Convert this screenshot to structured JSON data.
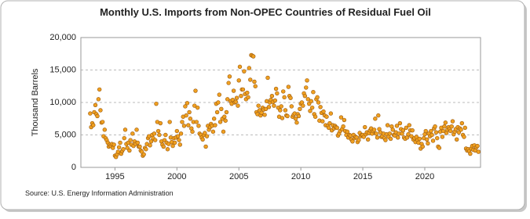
{
  "chart_data": {
    "type": "scatter",
    "title": "Monthly U.S. Imports from Non-OPEC Countries of Residual Fuel Oil",
    "y_label": "Thousand Barrels",
    "source": "Source: U.S. Energy Information Administration",
    "color": "#f0a020",
    "edge_color": "#9a5a10",
    "grid": true,
    "xlim": [
      1992.25,
      2024.5
    ],
    "xticks": [
      1995,
      2000,
      2005,
      2010,
      2015,
      2020
    ],
    "ylim": [
      0,
      20000
    ],
    "yticks": [
      0,
      {
        "value": 5000,
        "label": "5,000"
      },
      {
        "value": 10000,
        "label": "10,000"
      },
      {
        "value": 15000,
        "label": "15,000"
      },
      {
        "value": 20000,
        "label": "20,000"
      }
    ],
    "x": [
      1993,
      1993.08,
      1993.17,
      1993.25,
      1993.33,
      1993.42,
      1993.5,
      1993.58,
      1993.67,
      1993.75,
      1993.83,
      1993.92,
      1994,
      1994.08,
      1994.17,
      1994.25,
      1994.33,
      1994.42,
      1994.5,
      1994.58,
      1994.67,
      1994.75,
      1994.83,
      1994.92,
      1995,
      1995.08,
      1995.17,
      1995.25,
      1995.33,
      1995.42,
      1995.5,
      1995.58,
      1995.67,
      1995.75,
      1995.83,
      1995.92,
      1996,
      1996.08,
      1996.17,
      1996.25,
      1996.33,
      1996.42,
      1996.5,
      1996.58,
      1996.67,
      1996.75,
      1996.83,
      1996.92,
      1997,
      1997.08,
      1997.17,
      1997.25,
      1997.33,
      1997.42,
      1997.5,
      1997.58,
      1997.67,
      1997.75,
      1997.83,
      1997.92,
      1998,
      1998.08,
      1998.17,
      1998.25,
      1998.33,
      1998.42,
      1998.5,
      1998.58,
      1998.67,
      1998.75,
      1998.83,
      1998.92,
      1999,
      1999.08,
      1999.17,
      1999.25,
      1999.33,
      1999.42,
      1999.5,
      1999.58,
      1999.67,
      1999.75,
      1999.83,
      1999.92,
      2000,
      2000.08,
      2000.17,
      2000.25,
      2000.33,
      2000.42,
      2000.5,
      2000.58,
      2000.67,
      2000.75,
      2000.83,
      2000.92,
      2001,
      2001.08,
      2001.17,
      2001.25,
      2001.33,
      2001.42,
      2001.5,
      2001.58,
      2001.67,
      2001.75,
      2001.83,
      2001.92,
      2002,
      2002.08,
      2002.17,
      2002.25,
      2002.33,
      2002.42,
      2002.5,
      2002.58,
      2002.67,
      2002.75,
      2002.83,
      2002.92,
      2003,
      2003.08,
      2003.17,
      2003.25,
      2003.33,
      2003.42,
      2003.5,
      2003.58,
      2003.67,
      2003.75,
      2003.83,
      2003.92,
      2004,
      2004.08,
      2004.17,
      2004.25,
      2004.33,
      2004.42,
      2004.5,
      2004.58,
      2004.67,
      2004.75,
      2004.83,
      2004.92,
      2005,
      2005.08,
      2005.17,
      2005.25,
      2005.33,
      2005.42,
      2005.5,
      2005.58,
      2005.67,
      2005.75,
      2005.83,
      2005.92,
      2006,
      2006.08,
      2006.17,
      2006.25,
      2006.33,
      2006.42,
      2006.5,
      2006.58,
      2006.67,
      2006.75,
      2006.83,
      2006.92,
      2007,
      2007.08,
      2007.17,
      2007.25,
      2007.33,
      2007.42,
      2007.5,
      2007.58,
      2007.67,
      2007.75,
      2007.83,
      2007.92,
      2008,
      2008.08,
      2008.17,
      2008.25,
      2008.33,
      2008.42,
      2008.5,
      2008.58,
      2008.67,
      2008.75,
      2008.83,
      2008.92,
      2009,
      2009.08,
      2009.17,
      2009.25,
      2009.33,
      2009.42,
      2009.5,
      2009.58,
      2009.67,
      2009.75,
      2009.83,
      2009.92,
      2010,
      2010.08,
      2010.17,
      2010.25,
      2010.33,
      2010.42,
      2010.5,
      2010.58,
      2010.67,
      2010.75,
      2010.83,
      2010.92,
      2011,
      2011.08,
      2011.17,
      2011.25,
      2011.33,
      2011.42,
      2011.5,
      2011.58,
      2011.67,
      2011.75,
      2011.83,
      2011.92,
      2012,
      2012.08,
      2012.17,
      2012.25,
      2012.33,
      2012.42,
      2012.5,
      2012.58,
      2012.67,
      2012.75,
      2012.83,
      2012.92,
      2013,
      2013.08,
      2013.17,
      2013.25,
      2013.33,
      2013.42,
      2013.5,
      2013.58,
      2013.67,
      2013.75,
      2013.83,
      2013.92,
      2014,
      2014.08,
      2014.17,
      2014.25,
      2014.33,
      2014.42,
      2014.5,
      2014.58,
      2014.67,
      2014.75,
      2014.83,
      2014.92,
      2015,
      2015.08,
      2015.17,
      2015.25,
      2015.33,
      2015.42,
      2015.5,
      2015.58,
      2015.67,
      2015.75,
      2015.83,
      2015.92,
      2016,
      2016.08,
      2016.17,
      2016.25,
      2016.33,
      2016.42,
      2016.5,
      2016.58,
      2016.67,
      2016.75,
      2016.83,
      2016.92,
      2017,
      2017.08,
      2017.17,
      2017.25,
      2017.33,
      2017.42,
      2017.5,
      2017.58,
      2017.67,
      2017.75,
      2017.83,
      2017.92,
      2018,
      2018.08,
      2018.17,
      2018.25,
      2018.33,
      2018.42,
      2018.5,
      2018.58,
      2018.67,
      2018.75,
      2018.83,
      2018.92,
      2019,
      2019.08,
      2019.17,
      2019.25,
      2019.33,
      2019.42,
      2019.5,
      2019.58,
      2019.67,
      2019.75,
      2019.83,
      2019.92,
      2020,
      2020.08,
      2020.17,
      2020.25,
      2020.33,
      2020.42,
      2020.5,
      2020.58,
      2020.67,
      2020.75,
      2020.83,
      2020.92,
      2021,
      2021.08,
      2021.17,
      2021.25,
      2021.33,
      2021.42,
      2021.5,
      2021.58,
      2021.67,
      2021.75,
      2021.83,
      2021.92,
      2022,
      2022.08,
      2022.17,
      2022.25,
      2022.33,
      2022.42,
      2022.5,
      2022.58,
      2022.67,
      2022.75,
      2022.83,
      2022.92,
      2023,
      2023.08,
      2023.17,
      2023.25,
      2023.33,
      2023.42,
      2023.5,
      2023.58,
      2023.67,
      2023.75,
      2023.83,
      2023.92,
      2024,
      2024.08,
      2024.17,
      2024.25,
      2024.33
    ],
    "values": [
      8300,
      6200,
      6800,
      6500,
      8500,
      9600,
      8200,
      7900,
      10500,
      12000,
      8800,
      6900,
      7000,
      4800,
      5800,
      4500,
      4200,
      3800,
      3200,
      3500,
      3300,
      3600,
      3000,
      3500,
      1800,
      1600,
      2000,
      2400,
      3100,
      3800,
      2100,
      2500,
      2800,
      4500,
      5800,
      3600,
      3000,
      3800,
      2600,
      4200,
      3500,
      5200,
      3300,
      4000,
      3600,
      5800,
      3800,
      3200,
      3200,
      2600,
      2400,
      1800,
      2000,
      3000,
      2800,
      3600,
      4500,
      4800,
      3400,
      4000,
      5000,
      4500,
      5200,
      4200,
      9800,
      7000,
      5600,
      5000,
      6800,
      4000,
      3500,
      3200,
      4200,
      5000,
      3800,
      2800,
      3600,
      7000,
      4600,
      3900,
      3300,
      4500,
      3800,
      4600,
      5600,
      4800,
      4200,
      3500,
      5200,
      7000,
      7800,
      6400,
      9400,
      8000,
      9900,
      6500,
      8500,
      7500,
      6000,
      5500,
      7000,
      9500,
      11800,
      7000,
      9200,
      6400,
      5200,
      5000,
      4600,
      4300,
      5000,
      5300,
      3200,
      4800,
      6400,
      5800,
      6200,
      6700,
      6400,
      5500,
      7500,
      6500,
      9800,
      8500,
      10000,
      11200,
      7000,
      9000,
      7500,
      5500,
      7800,
      7200,
      8500,
      10500,
      13000,
      14000,
      10200,
      9800,
      10400,
      11800,
      10000,
      10100,
      10700,
      9500,
      13400,
      15500,
      11000,
      12000,
      12000,
      14800,
      11300,
      10500,
      11500,
      10800,
      15300,
      13500,
      17300,
      17200,
      17100,
      13200,
      12500,
      8500,
      8200,
      9500,
      8800,
      8000,
      8400,
      9200,
      8900,
      8100,
      9000,
      10200,
      13800,
      9300,
      10000,
      10400,
      11000,
      10100,
      9500,
      10300,
      12100,
      11400,
      9200,
      7800,
      8800,
      9400,
      7600,
      11700,
      10800,
      8800,
      8000,
      7900,
      12400,
      11000,
      10700,
      9400,
      7800,
      8100,
      8300,
      7500,
      6900,
      8200,
      7900,
      9000,
      9800,
      10000,
      9500,
      11400,
      11000,
      12300,
      13400,
      10500,
      9800,
      8700,
      10200,
      9200,
      11600,
      8200,
      7800,
      10500,
      10800,
      10000,
      7200,
      9300,
      8400,
      7100,
      8600,
      8000,
      6500,
      7800,
      6400,
      6100,
      6800,
      8300,
      5700,
      6500,
      6000,
      6400,
      6200,
      6100,
      4900,
      5200,
      5600,
      7700,
      5900,
      6300,
      7300,
      5600,
      5000,
      5500,
      4600,
      5000,
      4900,
      4300,
      4000,
      5000,
      4500,
      4700,
      4600,
      3900,
      4200,
      5300,
      4800,
      5000,
      5000,
      4700,
      6200,
      5100,
      5400,
      4300,
      5300,
      5700,
      6000,
      5200,
      5600,
      5800,
      7500,
      5200,
      4600,
      8000,
      5900,
      5400,
      4700,
      4800,
      5200,
      4500,
      4200,
      5100,
      6500,
      4700,
      5200,
      4400,
      6300,
      5800,
      5000,
      4900,
      5400,
      6400,
      4600,
      5200,
      6800,
      5900,
      5200,
      5700,
      4600,
      4400,
      6100,
      4600,
      5100,
      6500,
      5700,
      4800,
      5700,
      4300,
      4500,
      3900,
      4700,
      4200,
      3800,
      4400,
      2900,
      3600,
      3200,
      4500,
      5100,
      5600,
      4300,
      3700,
      5200,
      4800,
      5600,
      5000,
      4100,
      6000,
      6300,
      5400,
      4500,
      3200,
      3000,
      5500,
      6100,
      4700,
      5600,
      6300,
      6900,
      5300,
      5800,
      6200,
      5900,
      5600,
      6300,
      7100,
      5100,
      5500,
      5900,
      4300,
      6200,
      5400,
      6000,
      5800,
      6800,
      5000,
      4700,
      6100,
      2900,
      2600,
      2800,
      2500,
      2100,
      2900,
      3300,
      2700,
      3400,
      2600,
      3100,
      3300,
      2400
    ]
  }
}
